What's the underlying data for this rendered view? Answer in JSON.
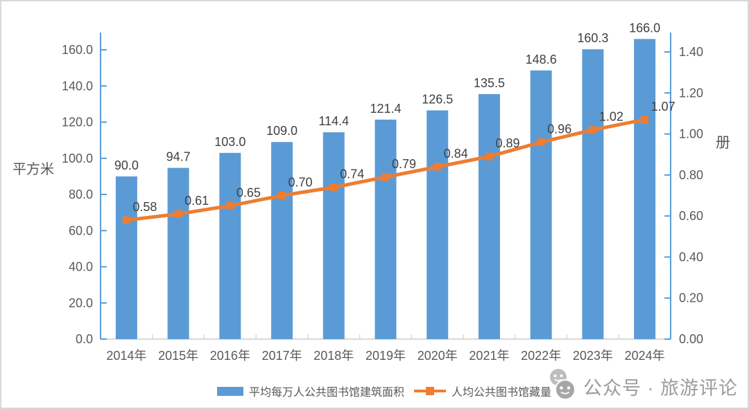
{
  "watermark": {
    "icon": "wechat-icon",
    "text": "公众号 · 旅游评论"
  },
  "chart_data": {
    "type": "bar+line",
    "categories": [
      "2014年",
      "2015年",
      "2016年",
      "2017年",
      "2018年",
      "2019年",
      "2020年",
      "2021年",
      "2022年",
      "2023年",
      "2024年"
    ],
    "series": [
      {
        "name": "平均每万人公共图书馆建筑面积",
        "type": "bar",
        "axis": "left",
        "color": "#5B9BD5",
        "values": [
          90.0,
          94.7,
          103.0,
          109.0,
          114.4,
          121.4,
          126.5,
          135.5,
          148.6,
          160.3,
          166.0
        ],
        "labels": [
          "90.0",
          "94.7",
          "103.0",
          "109.0",
          "114.4",
          "121.4",
          "126.5",
          "135.5",
          "148.6",
          "160.3",
          "166.0"
        ]
      },
      {
        "name": "人均公共图书馆藏量",
        "type": "line",
        "axis": "right",
        "color": "#ED7D31",
        "values": [
          0.58,
          0.61,
          0.65,
          0.7,
          0.74,
          0.79,
          0.84,
          0.89,
          0.96,
          1.02,
          1.07
        ],
        "labels": [
          "0.58",
          "0.61",
          "0.65",
          "0.70",
          "0.74",
          "0.79",
          "0.84",
          "0.89",
          "0.96",
          "1.02",
          "1.07"
        ]
      }
    ],
    "left_axis": {
      "title": "平方米",
      "min": 0,
      "max": 160,
      "step": 20,
      "tick_labels": [
        "0.0",
        "20.0",
        "40.0",
        "60.0",
        "80.0",
        "100.0",
        "120.0",
        "140.0",
        "160.0"
      ]
    },
    "right_axis": {
      "title": "册",
      "min": 0,
      "max": 1.4,
      "step": 0.2,
      "tick_labels": [
        "0.00",
        "0.20",
        "0.40",
        "0.60",
        "0.80",
        "1.00",
        "1.20",
        "1.40"
      ]
    },
    "legend_position": "bottom",
    "grid": false,
    "colors": {
      "bar": "#5B9BD5",
      "line": "#ED7D31",
      "axis_line": "#5B9BD5",
      "x_axis_line": "#D9D9D9",
      "tick_label": "#595959",
      "data_label": "#404040"
    }
  }
}
